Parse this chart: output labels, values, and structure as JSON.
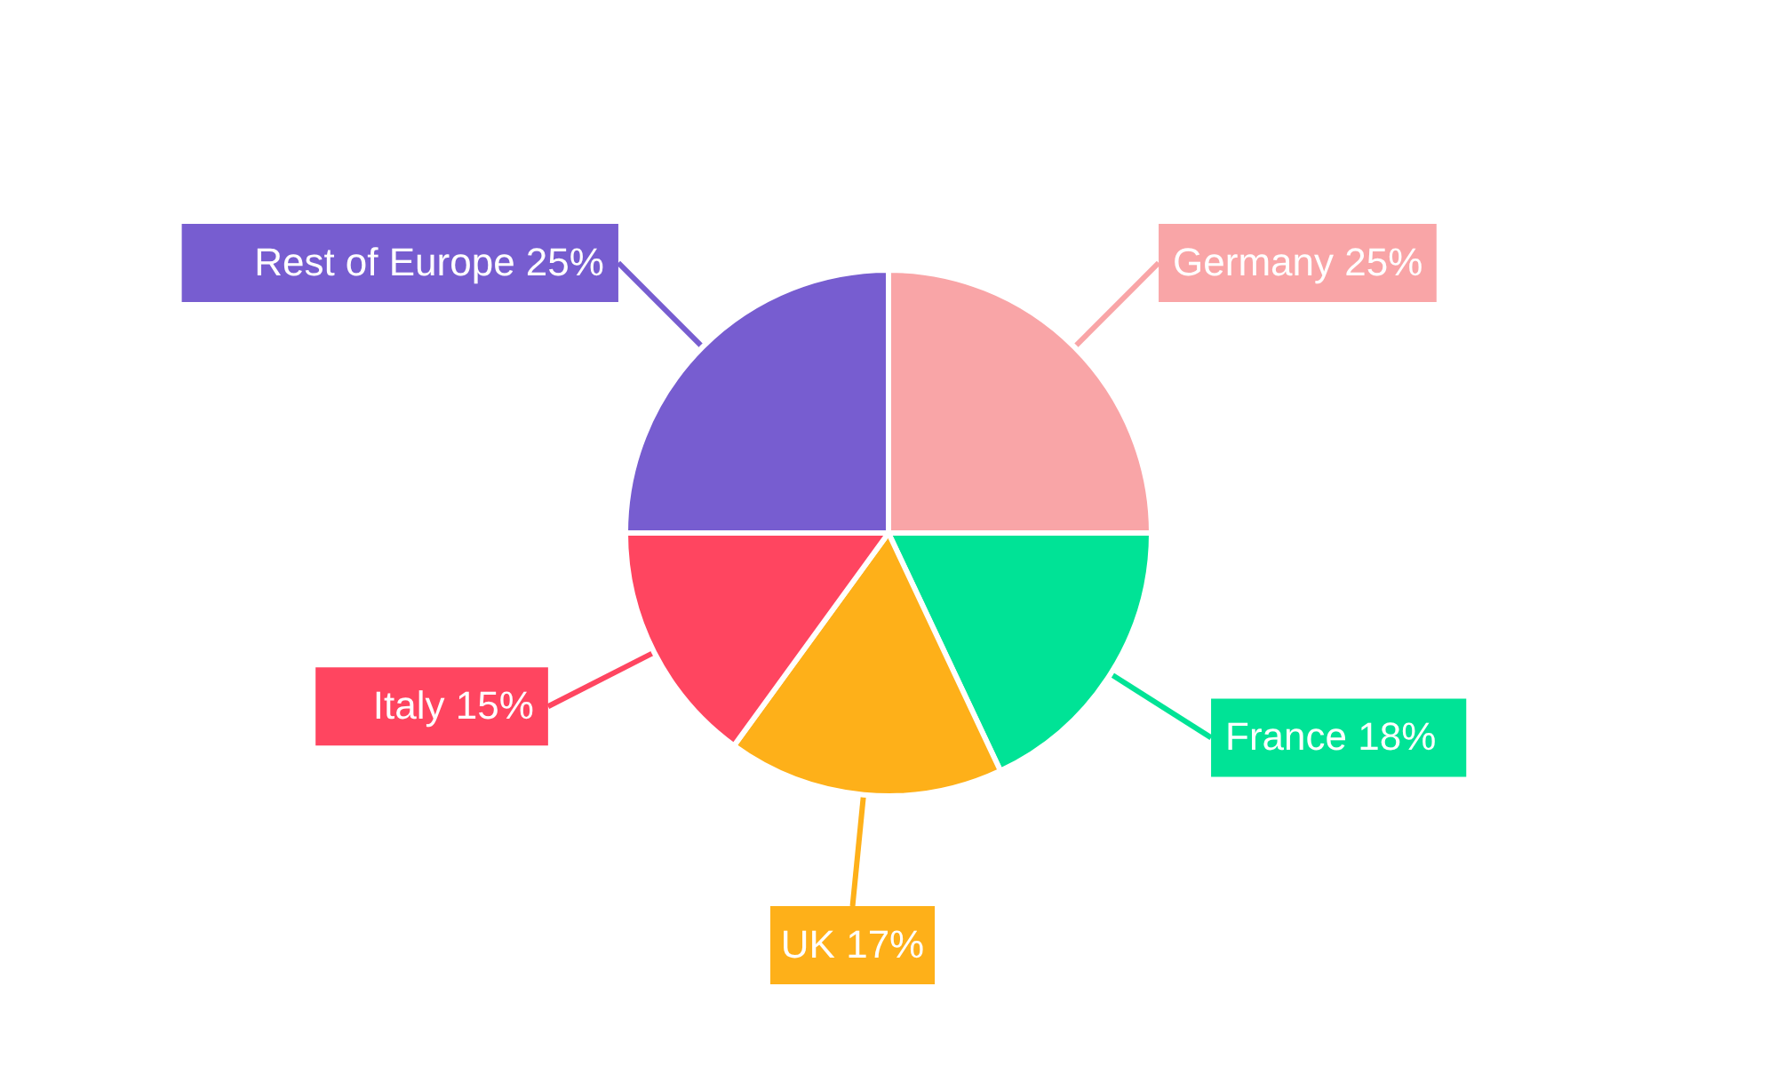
{
  "chart_data": {
    "type": "pie",
    "categories": [
      "Germany",
      "France",
      "UK",
      "Italy",
      "Rest of Europe"
    ],
    "values": [
      25,
      18,
      17,
      15,
      25
    ],
    "value_labels": [
      "25%",
      "18%",
      "17%",
      "15%",
      "25%"
    ],
    "colors": [
      "#f9a5a7",
      "#00e396",
      "#feb019",
      "#ff4560",
      "#775dd0"
    ]
  }
}
